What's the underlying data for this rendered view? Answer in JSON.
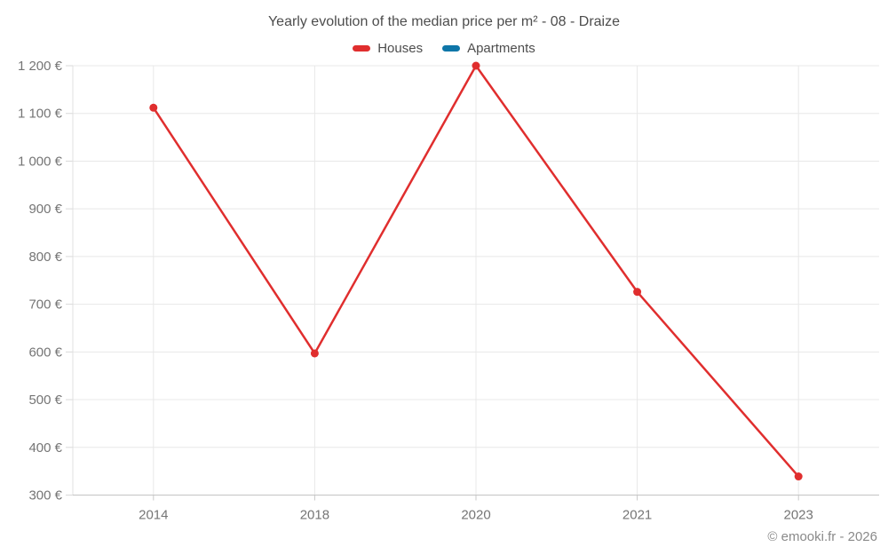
{
  "page": {
    "copyright": "© emooki.fr - 2026"
  },
  "chart_data": {
    "type": "line",
    "title": "Yearly evolution of the median price per m² - 08 - Draize",
    "categories": [
      "2014",
      "2018",
      "2020",
      "2021",
      "2023"
    ],
    "series": [
      {
        "name": "Houses",
        "color": "#e02e2e",
        "values": [
          1112,
          597,
          1200,
          726,
          339
        ]
      },
      {
        "name": "Apartments",
        "color": "#0e76a8",
        "values": []
      }
    ],
    "xlabel": "",
    "ylabel": "",
    "ylim": [
      300,
      1200
    ],
    "yticks": [
      300,
      400,
      500,
      600,
      700,
      800,
      900,
      1000,
      1100,
      1200
    ],
    "ytick_labels": [
      "300 €",
      "400 €",
      "500 €",
      "600 €",
      "700 €",
      "800 €",
      "900 €",
      "1 000 €",
      "1 100 €",
      "1 200 €"
    ],
    "grid": true,
    "legend_position": "top",
    "colors": {
      "grid": "#e8e8e8",
      "axis": "#c4c4c4",
      "tick_label": "#757575",
      "title_text": "#4d4d4d"
    }
  }
}
